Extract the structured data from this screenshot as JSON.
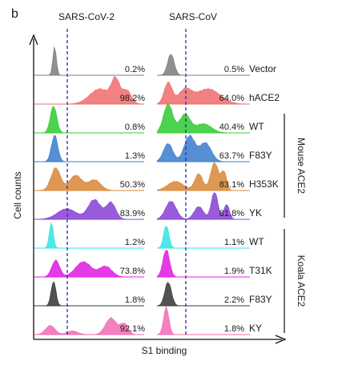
{
  "chart_data": {
    "type": "area",
    "panel_label": "b",
    "ylabel": "Cell counts",
    "xlabel": "S1 binding",
    "columns": [
      "SARS-CoV-2",
      "SARS-CoV"
    ],
    "groups": [
      {
        "label": "Mouse ACE2",
        "rows": [
          2,
          5
        ]
      },
      {
        "label": "Koala ACE2",
        "rows": [
          6,
          9
        ]
      }
    ],
    "rows": [
      {
        "label": "Vector",
        "color": "#7f7f7f",
        "values": [
          "0.2%",
          "0.5%"
        ]
      },
      {
        "label": "hACE2",
        "color": "#f07070",
        "values": [
          "98.2%",
          "64.0%"
        ]
      },
      {
        "label": "WT",
        "color": "#33cc33",
        "values": [
          "0.8%",
          "40.4%"
        ]
      },
      {
        "label": "F83Y",
        "color": "#3f7fcf",
        "values": [
          "1.3%",
          "63.7%"
        ]
      },
      {
        "label": "H353K",
        "color": "#d98a3a",
        "values": [
          "50.3%",
          "83.1%"
        ]
      },
      {
        "label": "YK",
        "color": "#8a44d6",
        "values": [
          "83.9%",
          "81.8%"
        ]
      },
      {
        "label": "WT",
        "color": "#33e6e6",
        "values": [
          "1.2%",
          "1.1%"
        ]
      },
      {
        "label": "T31K",
        "color": "#e020e0",
        "values": [
          "73.8%",
          "1.9%"
        ]
      },
      {
        "label": "F83Y",
        "color": "#3a3a3a",
        "values": [
          "1.8%",
          "2.2%"
        ]
      },
      {
        "label": "KY",
        "color": "#f26eb6",
        "values": [
          "92.1%",
          "1.8%"
        ]
      }
    ]
  }
}
